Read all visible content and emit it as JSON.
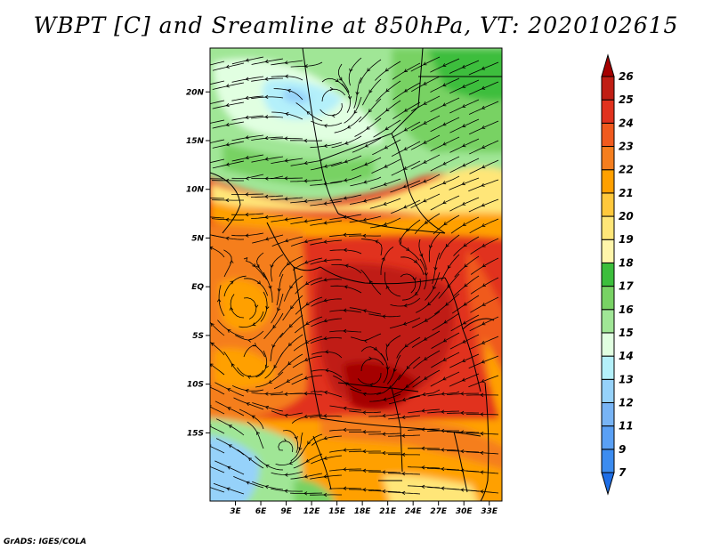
{
  "title": "WBPT [C] and Sreamline at 850hPa, VT: 2020102615",
  "credit": "GrADS: IGES/COLA",
  "map": {
    "lat_range": [
      -22,
      24.5
    ],
    "lon_range": [
      0,
      34.5
    ],
    "lat_labels": [
      "20N",
      "15N",
      "10N",
      "5N",
      "EQ",
      "5S",
      "10S",
      "15S"
    ],
    "lat_values": [
      20,
      15,
      10,
      5,
      0,
      -5,
      -10,
      -15
    ],
    "lon_labels": [
      "3E",
      "6E",
      "9E",
      "12E",
      "15E",
      "18E",
      "21E",
      "24E",
      "27E",
      "30E",
      "33E"
    ],
    "lon_values": [
      3,
      6,
      9,
      12,
      15,
      18,
      21,
      24,
      27,
      30,
      33
    ]
  },
  "colorbar": {
    "labels": [
      "7",
      "9",
      "11",
      "12",
      "13",
      "14",
      "15",
      "16",
      "17",
      "18",
      "19",
      "20",
      "21",
      "22",
      "23",
      "24",
      "25",
      "26"
    ],
    "colors": [
      "#1e6ee6",
      "#3c8cf0",
      "#5aa0f5",
      "#78b4f5",
      "#96d2fa",
      "#b4f0fa",
      "#e1ffe1",
      "#a0e696",
      "#78d264",
      "#3cbe3c",
      "#fff5aa",
      "#ffe678",
      "#ffc83c",
      "#ffa000",
      "#f57e1e",
      "#f05a1e",
      "#e1321e",
      "#c01e14",
      "#a50000"
    ]
  },
  "colors": {
    "frame": "#000000",
    "streamline": "#000000"
  }
}
